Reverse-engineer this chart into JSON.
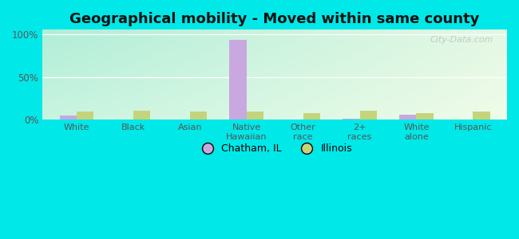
{
  "title": "Geographical mobility - Moved within same county",
  "categories": [
    "White",
    "Black",
    "Asian",
    "Native\nHawaiian",
    "Other\nrace",
    "2+\nraces",
    "White\nalone",
    "Hispanic"
  ],
  "chatham_values": [
    5.0,
    0.0,
    0.0,
    93.0,
    0.0,
    1.0,
    6.0,
    0.0
  ],
  "illinois_values": [
    10.0,
    11.0,
    10.0,
    10.0,
    8.0,
    11.0,
    8.0,
    10.0
  ],
  "chatham_color": "#c9a8e0",
  "illinois_color": "#c5d47a",
  "background_cyan": "#00e8e8",
  "plot_bg_topleft": "#b0eed8",
  "plot_bg_topright": "#e0f5e0",
  "plot_bg_bottomleft": "#c8f0d0",
  "plot_bg_bottomright": "#f0fcea",
  "yticks": [
    0,
    50,
    100
  ],
  "ylim": [
    0,
    105
  ],
  "bar_width": 0.3,
  "title_fontsize": 13,
  "watermark": "City-Data.com"
}
